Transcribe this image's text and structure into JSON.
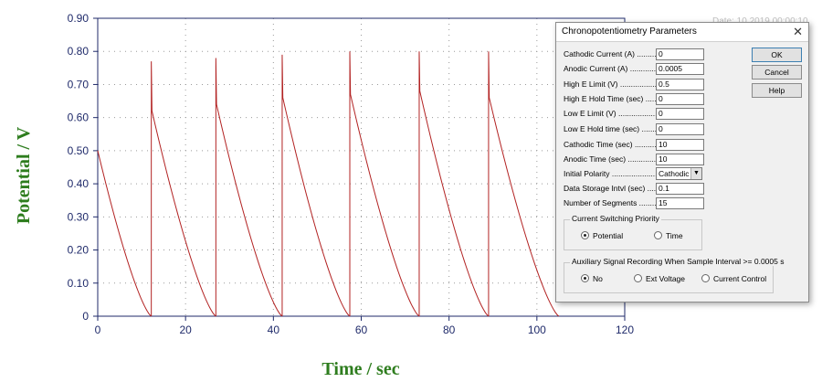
{
  "chart_data": {
    "type": "line",
    "xlabel": "Time / sec",
    "ylabel": "Potential / V",
    "xlim": [
      0,
      120
    ],
    "ylim": [
      0,
      0.9
    ],
    "x_ticks": [
      "0",
      "20",
      "40",
      "60",
      "80",
      "100",
      "120"
    ],
    "y_ticks": [
      "0",
      "0.10",
      "0.20",
      "0.30",
      "0.40",
      "0.50",
      "0.60",
      "0.70",
      "0.80",
      "0.90"
    ],
    "grid": "dotted",
    "series": [
      {
        "color": "#b22222",
        "segments": [
          {
            "start": 0.0,
            "end": 12.2,
            "peak": 0.5,
            "shoulder": 0.5
          },
          {
            "start": 12.2,
            "end": 26.9,
            "peak": 0.77,
            "shoulder": 0.62
          },
          {
            "start": 26.9,
            "end": 42.0,
            "peak": 0.78,
            "shoulder": 0.64
          },
          {
            "start": 42.0,
            "end": 57.4,
            "peak": 0.79,
            "shoulder": 0.66
          },
          {
            "start": 57.4,
            "end": 73.2,
            "peak": 0.8,
            "shoulder": 0.67
          },
          {
            "start": 73.2,
            "end": 89.0,
            "peak": 0.8,
            "shoulder": 0.68
          },
          {
            "start": 89.0,
            "end": 105.0,
            "peak": 0.8,
            "shoulder": 0.66
          }
        ]
      }
    ]
  },
  "dialog": {
    "title": "Chronopotentiometry Parameters",
    "close_glyph": "✕",
    "fields": [
      {
        "label": "Cathodic Current (A) ..............",
        "value": "0"
      },
      {
        "label": "Anodic Current (A) ...................",
        "value": "0.0005"
      },
      {
        "label": "High E Limit (V) ...........................",
        "value": "0.5"
      },
      {
        "label": "High E Hold Time (sec) ......",
        "value": "0"
      },
      {
        "label": "Low E Limit (V) ............................",
        "value": "0"
      },
      {
        "label": "Low E Hold time (sec) .........",
        "value": "0"
      },
      {
        "label": "Cathodic Time (sec) ..............",
        "value": "10"
      },
      {
        "label": "Anodic Time (sec) ...................",
        "value": "10"
      },
      {
        "label": "Initial Polarity ..........................",
        "value": "Cathodic"
      },
      {
        "label": "Data Storage Intvl (sec) ........",
        "value": "0.1"
      },
      {
        "label": "Number of Segments ..............",
        "value": "15"
      }
    ],
    "buttons": {
      "ok": "OK",
      "cancel": "Cancel",
      "help": "Help"
    },
    "switching_group": {
      "title": "Current Switching Priority",
      "options": [
        "Potential",
        "Time"
      ],
      "selected": "Potential"
    },
    "aux_group": {
      "title": "Auxiliary Signal Recording When Sample Interval >= 0.0005 s",
      "options": [
        "No",
        "Ext Voltage",
        "Current Control"
      ],
      "selected": "No"
    }
  },
  "background_fragment": "Date: 10 2019   00:00:10"
}
